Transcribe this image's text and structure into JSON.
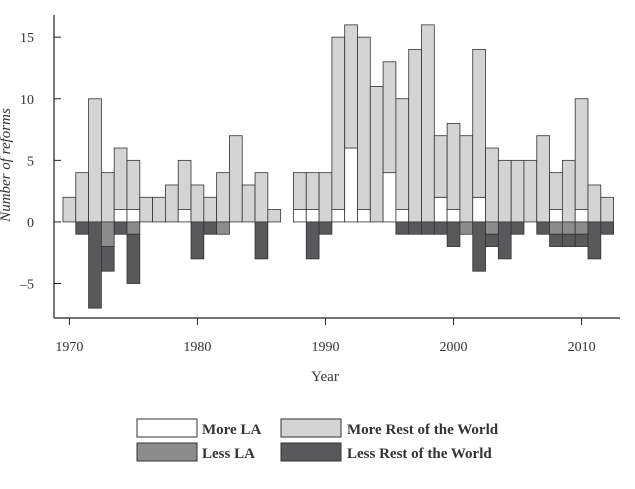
{
  "chart_data": {
    "type": "bar",
    "xlabel": "Year",
    "ylabel": "Number of reforms",
    "x_ticks": [
      1970,
      1980,
      1990,
      2000,
      2010
    ],
    "y_ticks": [
      15,
      10,
      5,
      0,
      -5
    ],
    "ylim": [
      -7.8,
      16.8
    ],
    "xlim": [
      1968.8,
      2013
    ],
    "years": [
      1970,
      1971,
      1972,
      1973,
      1974,
      1975,
      1976,
      1977,
      1978,
      1979,
      1980,
      1981,
      1982,
      1983,
      1984,
      1985,
      1986,
      1987,
      1988,
      1989,
      1990,
      1991,
      1992,
      1993,
      1994,
      1995,
      1996,
      1997,
      1998,
      1999,
      2000,
      2001,
      2002,
      2003,
      2004,
      2005,
      2006,
      2007,
      2008,
      2009,
      2010,
      2011,
      2012
    ],
    "series": [
      {
        "name": "More LA",
        "color": "#ffffff",
        "values": [
          0,
          0,
          0,
          0,
          1,
          1,
          0,
          0,
          0,
          1,
          0,
          0,
          0,
          0,
          0,
          0,
          0,
          null,
          1,
          1,
          0,
          1,
          6,
          1,
          0,
          4,
          1,
          0,
          0,
          2,
          1,
          0,
          2,
          0,
          0,
          0,
          0,
          0,
          1,
          0,
          1,
          0,
          0
        ]
      },
      {
        "name": "More Rest of the World",
        "color": "#d4d4d4",
        "values": [
          2,
          4,
          10,
          4,
          5,
          4,
          2,
          2,
          3,
          4,
          3,
          2,
          4,
          7,
          3,
          4,
          1,
          null,
          3,
          3,
          4,
          14,
          10,
          14,
          11,
          9,
          9,
          14,
          16,
          5,
          7,
          7,
          12,
          6,
          5,
          5,
          5,
          7,
          3,
          5,
          9,
          3,
          2
        ]
      },
      {
        "name": "Less LA",
        "color": "#8c8c8c",
        "values": [
          0,
          0,
          0,
          -2,
          0,
          -1,
          0,
          0,
          0,
          0,
          0,
          0,
          -1,
          0,
          0,
          0,
          0,
          null,
          0,
          0,
          0,
          0,
          0,
          0,
          0,
          0,
          0,
          0,
          0,
          0,
          0,
          -1,
          0,
          -1,
          0,
          0,
          0,
          0,
          -1,
          -1,
          -1,
          0,
          0
        ]
      },
      {
        "name": "Less Rest of the World",
        "color": "#59595b",
        "values": [
          0,
          -1,
          -7,
          -2,
          -1,
          -4,
          0,
          0,
          0,
          0,
          -3,
          -1,
          0,
          0,
          0,
          -3,
          0,
          null,
          0,
          -3,
          -1,
          0,
          0,
          0,
          0,
          0,
          -1,
          -1,
          -1,
          -1,
          -2,
          0,
          -4,
          -1,
          -3,
          -1,
          0,
          -1,
          -1,
          -1,
          -1,
          -3,
          -1
        ]
      }
    ],
    "legend": {
      "placement": "bottom-center",
      "columns": 2,
      "order": [
        "More LA",
        "More Rest of the World",
        "Less LA",
        "Less Rest of the World"
      ]
    },
    "grid": false
  }
}
